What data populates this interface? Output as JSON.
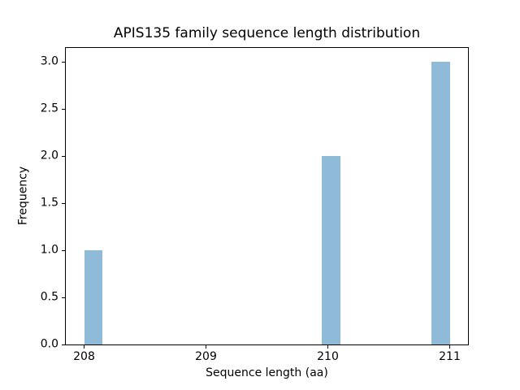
{
  "chart_data": {
    "type": "bar",
    "subtype": "histogram",
    "title": "APIS135 family sequence length distribution",
    "xlabel": "Sequence length (aa)",
    "ylabel": "Frequency",
    "xlim": [
      207.85,
      211.15
    ],
    "ylim": [
      0,
      3.15
    ],
    "grid": false,
    "legend": false,
    "bar_color": "#8fbbd9",
    "background_color": "#ffffff",
    "axis_color": "#000000",
    "bin_width": 0.15,
    "xticks": [
      {
        "value": 208,
        "label": "208"
      },
      {
        "value": 209,
        "label": "209"
      },
      {
        "value": 210,
        "label": "210"
      },
      {
        "value": 211,
        "label": "211"
      }
    ],
    "yticks": [
      {
        "value": 0.0,
        "label": "0.0"
      },
      {
        "value": 0.5,
        "label": "0.5"
      },
      {
        "value": 1.0,
        "label": "1.0"
      },
      {
        "value": 1.5,
        "label": "1.5"
      },
      {
        "value": 2.0,
        "label": "2.0"
      },
      {
        "value": 2.5,
        "label": "2.5"
      },
      {
        "value": 3.0,
        "label": "3.0"
      }
    ],
    "bars": [
      {
        "x_start": 208.0,
        "x_end": 208.15,
        "frequency": 1
      },
      {
        "x_start": 209.95,
        "x_end": 210.1,
        "frequency": 2
      },
      {
        "x_start": 210.85,
        "x_end": 211.0,
        "frequency": 3
      }
    ],
    "sequence_lengths": {
      "208": 1,
      "210": 2,
      "211": 3
    }
  }
}
